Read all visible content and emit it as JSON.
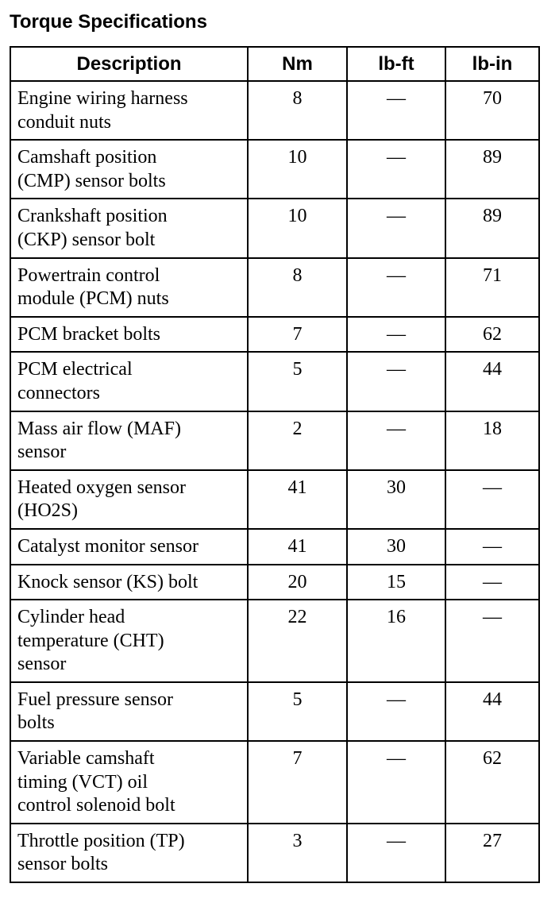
{
  "header": {
    "title": "Torque Specifications"
  },
  "table": {
    "columns": [
      "Description",
      "Nm",
      "lb-ft",
      "lb-in"
    ],
    "rows": [
      {
        "description": [
          "Engine wiring harness",
          "conduit nuts"
        ],
        "nm": 8,
        "lbft": "—",
        "lbin": 70
      },
      {
        "description": [
          "Camshaft position",
          "(CMP) sensor bolts"
        ],
        "nm": 10,
        "lbft": "—",
        "lbin": 89
      },
      {
        "description": [
          "Crankshaft position",
          "(CKP) sensor bolt"
        ],
        "nm": 10,
        "lbft": "—",
        "lbin": 89
      },
      {
        "description": [
          "Powertrain control",
          "module (PCM) nuts"
        ],
        "nm": 8,
        "lbft": "—",
        "lbin": 71
      },
      {
        "description": [
          "PCM bracket bolts"
        ],
        "nm": 7,
        "lbft": "—",
        "lbin": 62
      },
      {
        "description": [
          "PCM electrical",
          "connectors"
        ],
        "nm": 5,
        "lbft": "—",
        "lbin": 44
      },
      {
        "description": [
          "Mass air flow (MAF)",
          "sensor"
        ],
        "nm": 2,
        "lbft": "—",
        "lbin": 18
      },
      {
        "description": [
          "Heated oxygen sensor",
          "(HO2S)"
        ],
        "nm": 41,
        "lbft": 30,
        "lbin": "—"
      },
      {
        "description": [
          "Catalyst monitor sensor"
        ],
        "nm": 41,
        "lbft": 30,
        "lbin": "—"
      },
      {
        "description": [
          "Knock sensor (KS) bolt"
        ],
        "nm": 20,
        "lbft": 15,
        "lbin": "—"
      },
      {
        "description": [
          "Cylinder head",
          "temperature (CHT)",
          "sensor"
        ],
        "nm": 22,
        "lbft": 16,
        "lbin": "—"
      },
      {
        "description": [
          "Fuel pressure sensor",
          "bolts"
        ],
        "nm": 5,
        "lbft": "—",
        "lbin": 44
      },
      {
        "description": [
          "Variable camshaft",
          "timing (VCT) oil",
          "control solenoid bolt"
        ],
        "nm": 7,
        "lbft": "—",
        "lbin": 62
      },
      {
        "description": [
          "Throttle position (TP)",
          "sensor bolts"
        ],
        "nm": 3,
        "lbft": "—",
        "lbin": 27
      }
    ]
  }
}
